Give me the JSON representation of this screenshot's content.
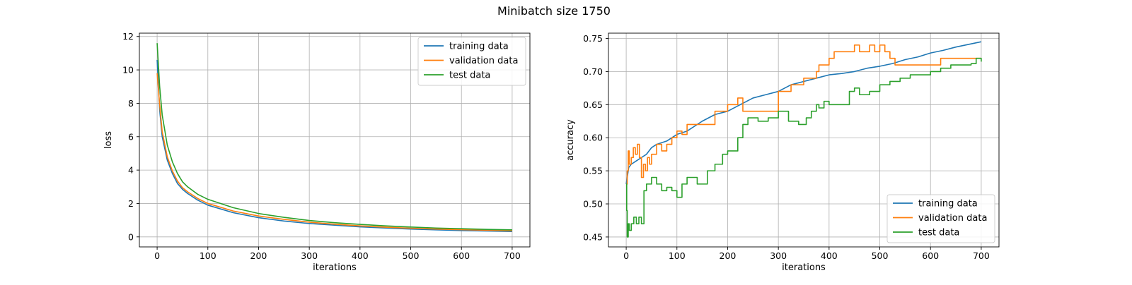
{
  "figure": {
    "suptitle": "Minibatch size 1750"
  },
  "chart_data": [
    {
      "type": "line",
      "xlabel": "iterations",
      "ylabel": "loss",
      "xlim": [
        -35,
        735
      ],
      "ylim": [
        -0.6,
        12.2
      ],
      "xticks": [
        0,
        100,
        200,
        300,
        400,
        500,
        600,
        700
      ],
      "yticks": [
        0,
        2,
        4,
        6,
        8,
        10,
        12
      ],
      "grid": true,
      "legend": "top-right",
      "series": [
        {
          "name": "training data",
          "color": "#1f77b4",
          "x": [
            0,
            5,
            10,
            20,
            30,
            40,
            50,
            60,
            80,
            100,
            150,
            200,
            250,
            300,
            350,
            400,
            450,
            500,
            550,
            600,
            650,
            700
          ],
          "y": [
            10.6,
            7.6,
            6.0,
            4.6,
            3.8,
            3.2,
            2.85,
            2.6,
            2.2,
            1.9,
            1.45,
            1.15,
            0.95,
            0.8,
            0.7,
            0.6,
            0.53,
            0.47,
            0.42,
            0.38,
            0.35,
            0.32
          ]
        },
        {
          "name": "validation data",
          "color": "#ff7f0e",
          "x": [
            0,
            5,
            10,
            20,
            30,
            40,
            50,
            60,
            80,
            100,
            150,
            200,
            250,
            300,
            350,
            400,
            450,
            500,
            550,
            600,
            650,
            700
          ],
          "y": [
            9.8,
            7.9,
            6.3,
            4.8,
            3.95,
            3.35,
            2.95,
            2.7,
            2.3,
            2.0,
            1.55,
            1.25,
            1.05,
            0.88,
            0.76,
            0.66,
            0.58,
            0.52,
            0.47,
            0.43,
            0.4,
            0.37
          ]
        },
        {
          "name": "test data",
          "color": "#2ca02c",
          "x": [
            0,
            5,
            10,
            20,
            30,
            40,
            50,
            60,
            80,
            100,
            150,
            200,
            250,
            300,
            350,
            400,
            450,
            500,
            550,
            600,
            650,
            700
          ],
          "y": [
            11.6,
            9.0,
            7.3,
            5.5,
            4.5,
            3.8,
            3.3,
            3.0,
            2.55,
            2.25,
            1.75,
            1.4,
            1.17,
            0.98,
            0.85,
            0.75,
            0.66,
            0.59,
            0.53,
            0.49,
            0.45,
            0.42
          ]
        }
      ]
    },
    {
      "type": "line",
      "xlabel": "iterations",
      "ylabel": "accuracy",
      "xlim": [
        -35,
        735
      ],
      "ylim": [
        0.435,
        0.758
      ],
      "xticks": [
        0,
        100,
        200,
        300,
        400,
        500,
        600,
        700
      ],
      "yticks": [
        0.45,
        0.5,
        0.55,
        0.6,
        0.65,
        0.7,
        0.75
      ],
      "grid": true,
      "legend": "bottom-right",
      "series": [
        {
          "name": "training data",
          "color": "#1f77b4",
          "x": [
            0,
            5,
            10,
            20,
            30,
            40,
            50,
            60,
            80,
            100,
            120,
            150,
            175,
            200,
            225,
            250,
            275,
            300,
            325,
            350,
            375,
            400,
            425,
            450,
            475,
            500,
            525,
            550,
            575,
            600,
            625,
            650,
            675,
            700
          ],
          "y": [
            0.53,
            0.555,
            0.56,
            0.565,
            0.57,
            0.575,
            0.585,
            0.59,
            0.595,
            0.605,
            0.61,
            0.625,
            0.635,
            0.64,
            0.65,
            0.66,
            0.665,
            0.67,
            0.68,
            0.685,
            0.69,
            0.695,
            0.697,
            0.7,
            0.705,
            0.708,
            0.712,
            0.718,
            0.722,
            0.728,
            0.732,
            0.737,
            0.741,
            0.745
          ]
        },
        {
          "name": "validation data",
          "color": "#ff7f0e",
          "x": [
            0,
            2,
            4,
            6,
            10,
            14,
            18,
            22,
            26,
            30,
            34,
            38,
            42,
            46,
            50,
            60,
            70,
            80,
            90,
            100,
            110,
            120,
            150,
            175,
            200,
            220,
            230,
            250,
            300,
            325,
            350,
            375,
            380,
            400,
            410,
            420,
            440,
            450,
            460,
            480,
            490,
            500,
            510,
            520,
            530,
            560,
            600,
            620,
            650,
            700
          ],
          "y": [
            0.53,
            0.55,
            0.58,
            0.56,
            0.57,
            0.585,
            0.575,
            0.59,
            0.57,
            0.54,
            0.56,
            0.55,
            0.57,
            0.56,
            0.575,
            0.59,
            0.58,
            0.59,
            0.6,
            0.61,
            0.605,
            0.62,
            0.62,
            0.64,
            0.65,
            0.66,
            0.64,
            0.64,
            0.67,
            0.68,
            0.69,
            0.7,
            0.71,
            0.72,
            0.73,
            0.73,
            0.73,
            0.74,
            0.73,
            0.74,
            0.73,
            0.74,
            0.73,
            0.72,
            0.71,
            0.71,
            0.71,
            0.72,
            0.72,
            0.72
          ]
        },
        {
          "name": "test data",
          "color": "#2ca02c",
          "x": [
            0,
            1,
            2,
            4,
            6,
            10,
            15,
            20,
            25,
            30,
            35,
            40,
            50,
            60,
            70,
            80,
            90,
            100,
            110,
            120,
            140,
            160,
            175,
            190,
            200,
            210,
            220,
            230,
            240,
            260,
            280,
            300,
            320,
            340,
            355,
            365,
            375,
            380,
            390,
            400,
            420,
            440,
            450,
            460,
            480,
            500,
            520,
            540,
            560,
            600,
            620,
            640,
            660,
            680,
            690,
            700
          ],
          "y": [
            0.53,
            0.49,
            0.45,
            0.47,
            0.46,
            0.47,
            0.48,
            0.47,
            0.48,
            0.47,
            0.52,
            0.53,
            0.54,
            0.53,
            0.52,
            0.525,
            0.52,
            0.51,
            0.53,
            0.54,
            0.53,
            0.55,
            0.56,
            0.575,
            0.58,
            0.58,
            0.6,
            0.62,
            0.63,
            0.625,
            0.63,
            0.64,
            0.625,
            0.62,
            0.63,
            0.64,
            0.65,
            0.645,
            0.655,
            0.65,
            0.65,
            0.67,
            0.675,
            0.665,
            0.67,
            0.68,
            0.685,
            0.69,
            0.695,
            0.7,
            0.705,
            0.71,
            0.71,
            0.712,
            0.72,
            0.715
          ]
        }
      ]
    }
  ]
}
